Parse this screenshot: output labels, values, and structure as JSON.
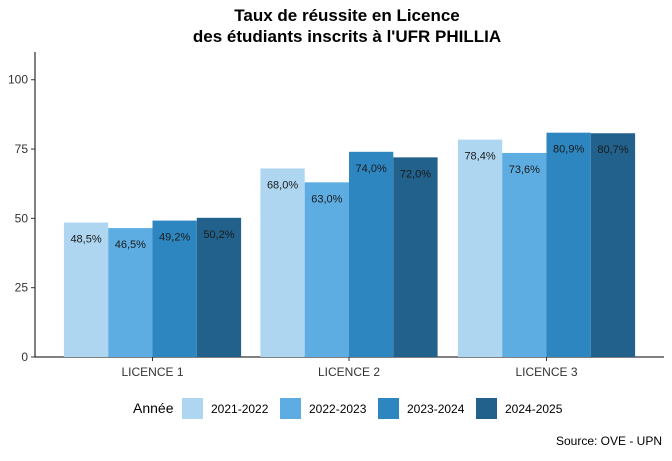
{
  "chart_data": {
    "type": "bar",
    "title": [
      "Taux de réussite en Licence",
      "des étudiants inscrits à l'UFR PHILLIA"
    ],
    "categories": [
      "LICENCE 1",
      "LICENCE 2",
      "LICENCE 3"
    ],
    "series": [
      {
        "name": "2021-2022",
        "color": "#aed6f1",
        "values": [
          48.5,
          68.0,
          78.4
        ],
        "labels": [
          "48,5%",
          "68,0%",
          "78,4%"
        ]
      },
      {
        "name": "2022-2023",
        "color": "#5dade2",
        "values": [
          46.5,
          63.0,
          73.6
        ],
        "labels": [
          "46,5%",
          "63,0%",
          "73,6%"
        ]
      },
      {
        "name": "2023-2024",
        "color": "#2e86c1",
        "values": [
          49.2,
          74.0,
          80.9
        ],
        "labels": [
          "49,2%",
          "74,0%",
          "80,9%"
        ]
      },
      {
        "name": "2024-2025",
        "color": "#21618c",
        "values": [
          50.2,
          72.0,
          80.7
        ],
        "labels": [
          "50,2%",
          "72,0%",
          "80,7%"
        ]
      }
    ],
    "ylim": [
      0,
      110
    ],
    "yticks": [
      0,
      25,
      50,
      75,
      100
    ],
    "xlabel": "",
    "ylabel": "",
    "legend_title": "Année",
    "legend_position": "bottom",
    "grid": false
  },
  "source": "Source: OVE - UPN"
}
